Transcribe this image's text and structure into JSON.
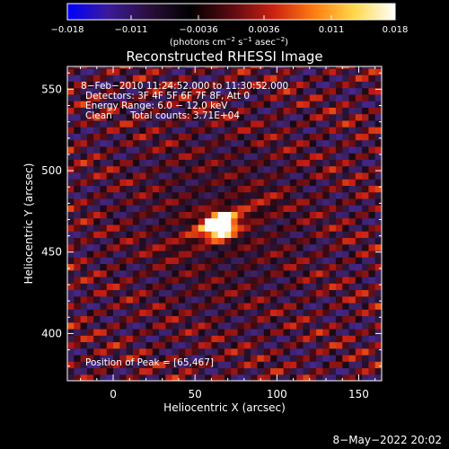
{
  "colorbar": {
    "min": -0.018,
    "max": 0.018,
    "tick_labels": [
      "−0.018",
      "−0.011",
      "−0.0036",
      "0.0036",
      "0.011",
      "0.018"
    ],
    "tick_values": [
      -0.018,
      -0.011,
      -0.0036,
      0.0036,
      0.011,
      0.018
    ],
    "units_prefix": "(photons cm",
    "units_exp1": "−2",
    "units_mid": " s",
    "units_exp2": "−1",
    "units_mid2": " asec",
    "units_exp3": "−2",
    "units_suffix": ")",
    "colormap": [
      "#0000ff",
      "#3a1a9a",
      "#2a0f3a",
      "#000000",
      "#5a0a10",
      "#c82010",
      "#ff7a10",
      "#ffd84a",
      "#ffffff"
    ]
  },
  "chart_data": {
    "type": "heatmap",
    "title": "Reconstructed RHESSI Image",
    "xlabel": "Heliocentric X (arcsec)",
    "ylabel": "Heliocentric Y (arcsec)",
    "xlim": [
      -28,
      164
    ],
    "ylim": [
      371,
      564
    ],
    "x_ticks": [
      0,
      50,
      100,
      150
    ],
    "x_tick_labels": [
      "0",
      "50",
      "100",
      "150"
    ],
    "y_ticks": [
      400,
      450,
      500,
      550
    ],
    "y_tick_labels": [
      "400",
      "450",
      "500",
      "550"
    ],
    "peak": [
      65,
      467
    ],
    "annotations": [
      "8−Feb−2010 11:24:52.000 to 11:30:52.000",
      "Detectors: 3F 4F 5F 6F 7F 8F, Att 0",
      "Energy Range: 6.0 − 12.0 keV",
      "Clean",
      "Total counts: 3.71E+04",
      "Position of Peak = [65,467]"
    ]
  },
  "footer": {
    "timestamp": "8−May−2022 20:02"
  }
}
